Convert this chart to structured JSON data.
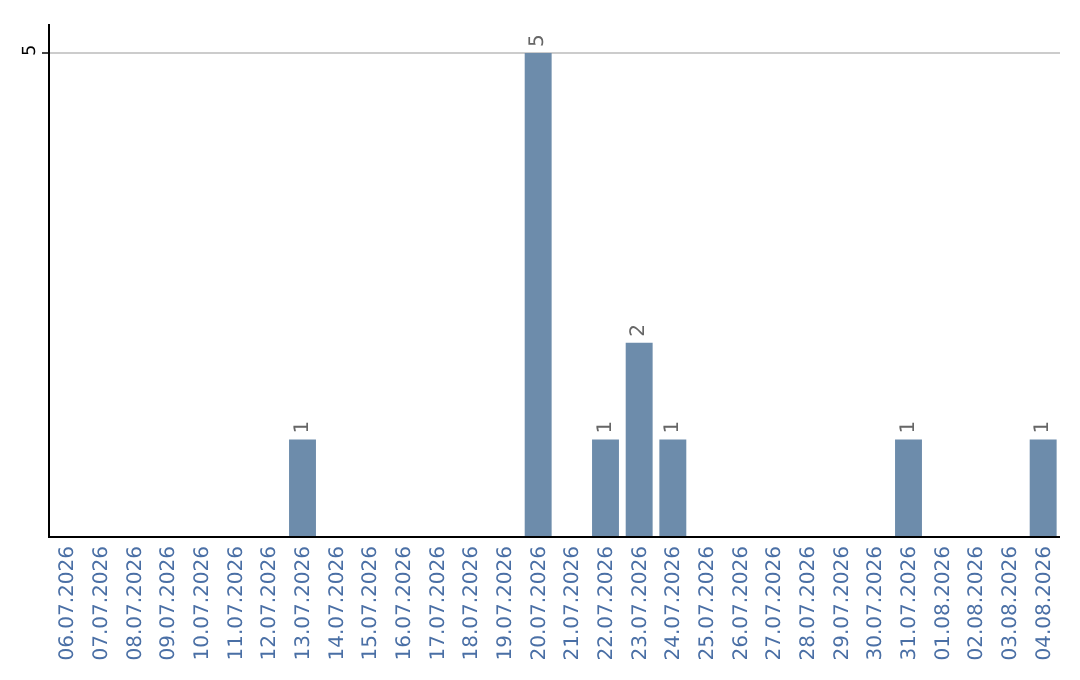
{
  "chart_data": {
    "type": "bar",
    "categories": [
      "06.07.2026",
      "07.07.2026",
      "08.07.2026",
      "09.07.2026",
      "10.07.2026",
      "11.07.2026",
      "12.07.2026",
      "13.07.2026",
      "14.07.2026",
      "15.07.2026",
      "16.07.2026",
      "17.07.2026",
      "18.07.2026",
      "19.07.2026",
      "20.07.2026",
      "21.07.2026",
      "22.07.2026",
      "23.07.2026",
      "24.07.2026",
      "25.07.2026",
      "26.07.2026",
      "27.07.2026",
      "28.07.2026",
      "29.07.2026",
      "30.07.2026",
      "31.07.2026",
      "01.08.2026",
      "02.08.2026",
      "03.08.2026",
      "04.08.2026"
    ],
    "values": [
      0,
      0,
      0,
      0,
      0,
      0,
      0,
      1,
      0,
      0,
      0,
      0,
      0,
      0,
      5,
      0,
      1,
      2,
      1,
      0,
      0,
      0,
      0,
      0,
      0,
      1,
      0,
      0,
      0,
      1
    ],
    "value_labels": [
      null,
      null,
      null,
      null,
      null,
      null,
      null,
      "1",
      null,
      null,
      null,
      null,
      null,
      null,
      "5",
      null,
      "1",
      "2",
      "1",
      null,
      null,
      null,
      null,
      null,
      null,
      "1",
      null,
      null,
      null,
      "1"
    ],
    "color": "#6d8cab",
    "ylim": [
      0,
      5.3
    ],
    "yticks": [
      5
    ],
    "grid": "y"
  }
}
